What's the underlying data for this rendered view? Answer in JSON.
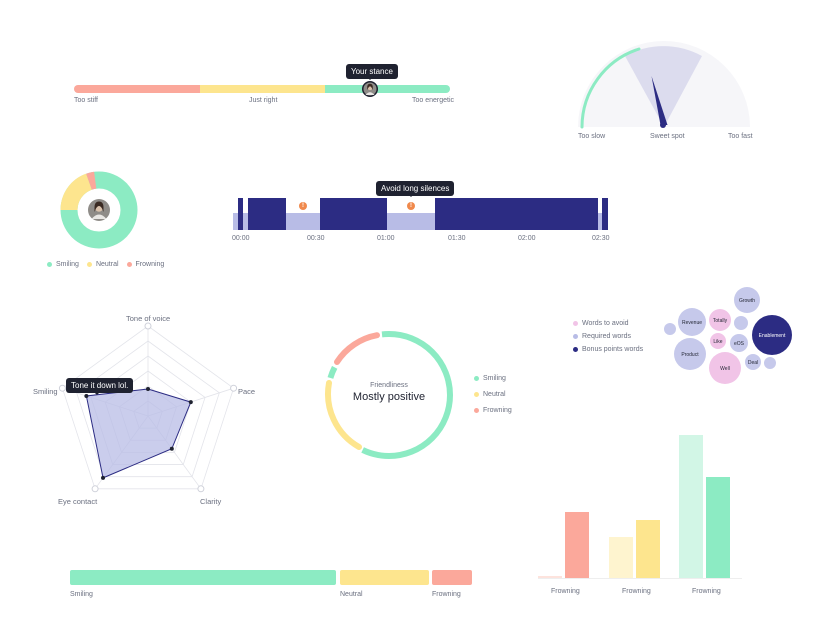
{
  "colors": {
    "green": "#8cebc3",
    "yellow": "#fde58e",
    "red": "#fba89b",
    "navy": "#2c2c83",
    "lavender": "#b8bce6",
    "pink": "#f1c4e7",
    "orange": "#f0894c",
    "dark": "#1f2230"
  },
  "stance": {
    "tooltip": "Your stance",
    "labels": [
      "Too stiff",
      "Just right",
      "Too energetic"
    ],
    "position": 0.79
  },
  "speed_gauge": {
    "labels": [
      "Too slow",
      "Sweet spot",
      "Too fast"
    ],
    "needle_value": 0.47
  },
  "expression_donut": {
    "values": [
      86,
      11,
      3
    ],
    "legend": [
      "Smiling",
      "Neutral",
      "Frowning"
    ]
  },
  "timeline": {
    "tooltip": "Avoid long silences",
    "ticks": [
      "00:00",
      "00:30",
      "01:00",
      "01:30",
      "02:00",
      "02:30"
    ]
  },
  "radar": {
    "axes": [
      "Tone of voice",
      "Pace",
      "Clarity",
      "Eye contact",
      "Smiling"
    ],
    "values": [
      0.3,
      0.5,
      0.45,
      0.85,
      0.72
    ],
    "tooltip": "Tone it down lol."
  },
  "friendliness": {
    "label": "Friendliness",
    "value": "Mostly positive",
    "legend": [
      "Smiling",
      "Neutral",
      "Frowning"
    ]
  },
  "words": {
    "legend": [
      "Words to avoid",
      "Required words",
      "Bonus points words"
    ],
    "bubbles": [
      "Growth",
      "Revenue",
      "Totally",
      "Enablement",
      "Like",
      "eOS",
      "Product",
      "Deal",
      "Well"
    ]
  },
  "expression_bar": {
    "labels": [
      "Smiling",
      "Neutral",
      "Frowning"
    ],
    "values": [
      72,
      19,
      9
    ]
  },
  "bar_groups": {
    "labels": [
      "Frowning",
      "Frowning",
      "Frowning"
    ]
  }
}
